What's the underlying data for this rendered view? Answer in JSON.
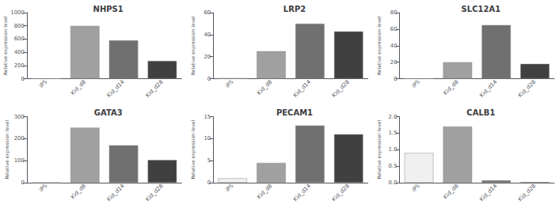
{
  "chart_data": [
    {
      "type": "bar",
      "title": "NHPS1",
      "categories": [
        "iPS",
        "Kid_d8",
        "Kid_d14",
        "Kid_d28"
      ],
      "values": [
        0,
        800,
        580,
        270
      ],
      "colors": [
        "#f0f0f0",
        "#a0a0a0",
        "#707070",
        "#404040"
      ],
      "ylabel": "Relative expression level",
      "ylim": [
        0,
        1000
      ],
      "yticks": [
        0,
        200,
        400,
        600,
        800,
        1000
      ],
      "grid": false
    },
    {
      "type": "bar",
      "title": "LRP2",
      "categories": [
        "iPS",
        "Kid_d8",
        "Kid_d14",
        "Kid_d28"
      ],
      "values": [
        0.5,
        25,
        50,
        43
      ],
      "colors": [
        "#f0f0f0",
        "#a0a0a0",
        "#707070",
        "#404040"
      ],
      "ylabel": "Relative expression level",
      "ylim": [
        0,
        60
      ],
      "yticks": [
        0,
        20,
        40,
        60
      ],
      "grid": false
    },
    {
      "type": "bar",
      "title": "SLC12A1",
      "categories": [
        "iPS",
        "Kid_d8",
        "Kid_d14",
        "Kid_d28"
      ],
      "values": [
        0,
        20,
        65,
        18
      ],
      "colors": [
        "#f0f0f0",
        "#a0a0a0",
        "#707070",
        "#404040"
      ],
      "ylabel": "Relative expression level",
      "ylim": [
        0,
        80
      ],
      "yticks": [
        0,
        20,
        40,
        60,
        80
      ],
      "grid": false
    },
    {
      "type": "bar",
      "title": "GATA3",
      "categories": [
        "iPS",
        "Kid_d8",
        "Kid_d14",
        "Kid_d28"
      ],
      "values": [
        0,
        250,
        170,
        103
      ],
      "colors": [
        "#f0f0f0",
        "#a0a0a0",
        "#707070",
        "#404040"
      ],
      "ylabel": "Relative expression level",
      "ylim": [
        0,
        300
      ],
      "yticks": [
        0,
        100,
        200,
        300
      ],
      "grid": false
    },
    {
      "type": "bar",
      "title": "PECAM1",
      "categories": [
        "iPS",
        "Kid_d8",
        "Kid_d14",
        "Kid_d28"
      ],
      "values": [
        1,
        4.5,
        13,
        11
      ],
      "colors": [
        "#f0f0f0",
        "#a0a0a0",
        "#707070",
        "#404040"
      ],
      "ylabel": "Relative expression level",
      "ylim": [
        0,
        15
      ],
      "yticks": [
        0,
        5,
        10,
        15
      ],
      "grid": false
    },
    {
      "type": "bar",
      "title": "CALB1",
      "categories": [
        "iPS",
        "Kid_d8",
        "Kid_d14",
        "Kid_d28"
      ],
      "values": [
        0.9,
        1.7,
        0.07,
        0.02
      ],
      "colors": [
        "#f0f0f0",
        "#a0a0a0",
        "#707070",
        "#404040"
      ],
      "ylabel": "Relative expression level",
      "ylim": [
        0,
        2.0
      ],
      "yticks": [
        {
          "value": 0,
          "label": "0.0"
        },
        0.5,
        {
          "value": 1,
          "label": "1.0"
        },
        1.5,
        {
          "value": 2,
          "label": "2.0"
        }
      ],
      "grid": false
    }
  ]
}
